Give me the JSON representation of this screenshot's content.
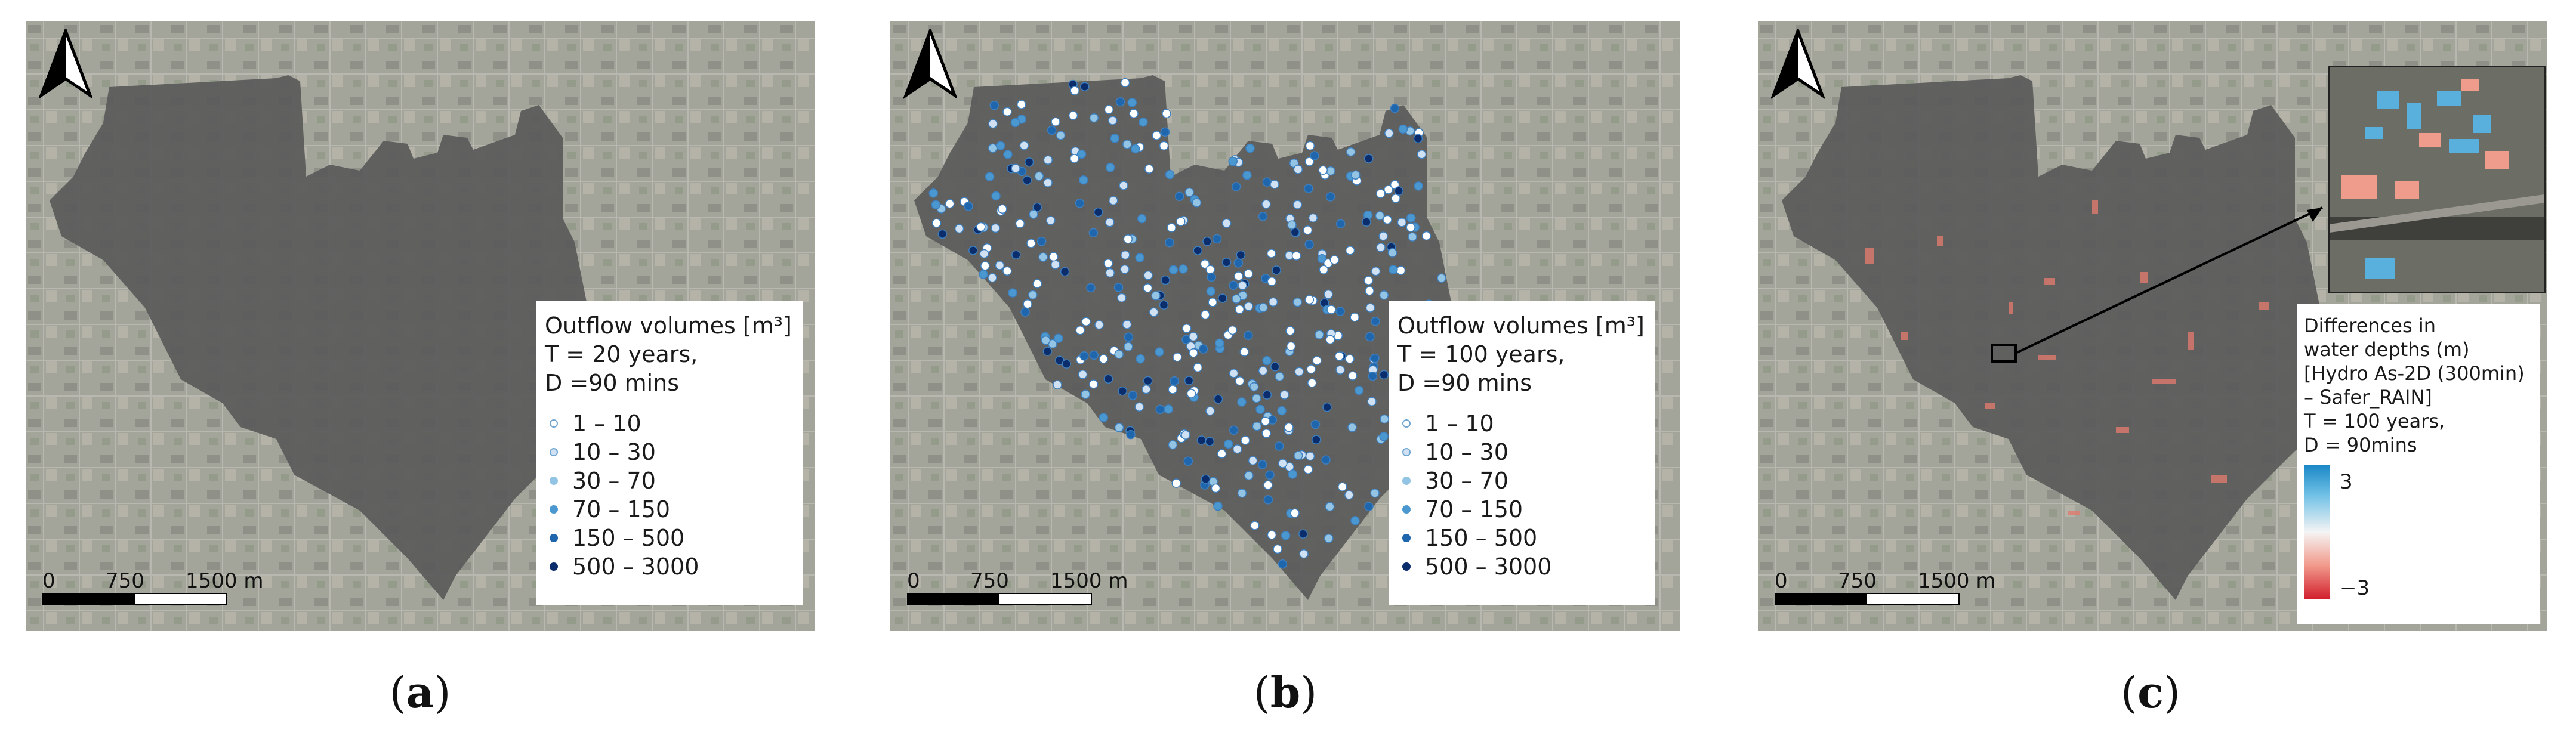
{
  "panels": [
    {
      "id": "a",
      "caption": "a",
      "legend": {
        "title": "Outflow volumes [m³]\nT = 20 years,\nD =90 mins",
        "classes": [
          "1 – 10",
          "10 – 30",
          "30 – 70",
          "70 – 150",
          "150 – 500",
          "500 – 3000"
        ],
        "class_colors": [
          "#ffffff",
          "#cfe1f2",
          "#93c4e4",
          "#4a98cf",
          "#1f66ad",
          "#0b2d6b"
        ]
      },
      "scale": {
        "labels": [
          "0",
          "750",
          "1500 m"
        ]
      }
    },
    {
      "id": "b",
      "caption": "b",
      "legend": {
        "title": "Outflow volumes [m³]\nT = 100 years,\nD =90 mins",
        "classes": [
          "1 – 10",
          "10 – 30",
          "30 – 70",
          "70 – 150",
          "150 – 500",
          "500 – 3000"
        ],
        "class_colors": [
          "#ffffff",
          "#cfe1f2",
          "#93c4e4",
          "#4a98cf",
          "#1f66ad",
          "#0b2d6b"
        ]
      },
      "scale": {
        "labels": [
          "0",
          "750",
          "1500 m"
        ]
      }
    },
    {
      "id": "c",
      "caption": "c",
      "legend": {
        "title": "Differences in\nwater depths (m)\n[Hydro As-2D (300min)\n– Safer_RAIN]\nT = 100 years,\nD = 90mins",
        "max_label": "3",
        "min_label": "−3"
      },
      "scale": {
        "labels": [
          "0",
          "750",
          "1500 m"
        ]
      }
    }
  ],
  "colors": {
    "basemap": "#9c9e94",
    "domain": "#5a5a5a",
    "positive": "#1b88c6",
    "negative": "#d2202e"
  },
  "icons": [
    "north-arrow-icon"
  ]
}
